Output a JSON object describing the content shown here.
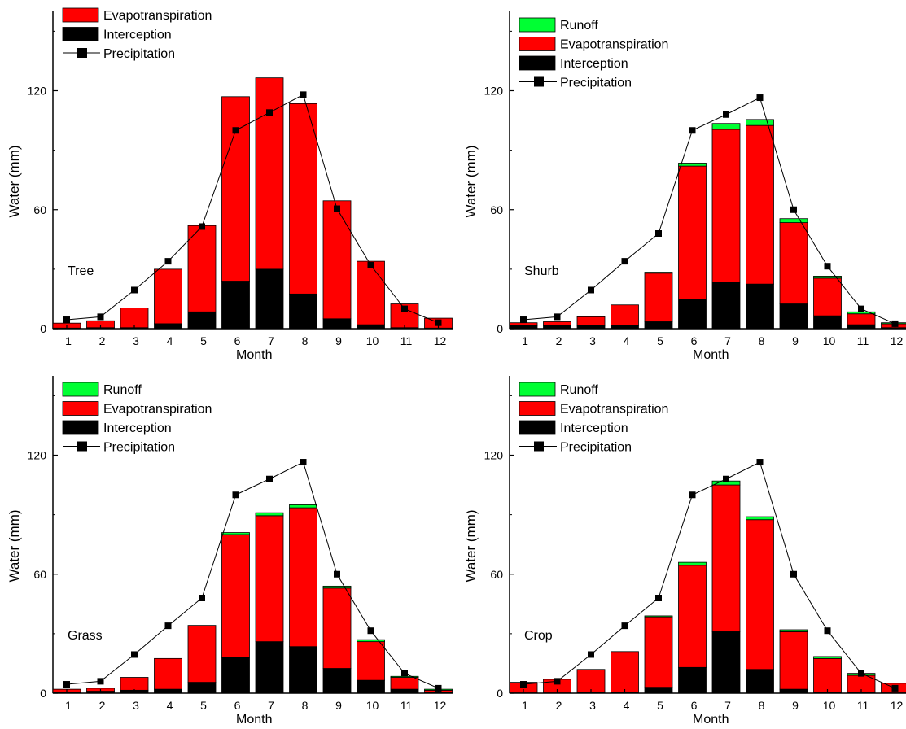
{
  "colors": {
    "runoff": "#00ff33",
    "evapotranspiration": "#ff0000",
    "interception": "#000000",
    "precipitation": "#000000"
  },
  "chart_data": [
    {
      "type": "bar",
      "stacked": true,
      "label": "Tree",
      "xlabel": "Month",
      "ylabel": "Water (mm)",
      "ylim": [
        0,
        160
      ],
      "yticks": [
        0,
        60,
        120
      ],
      "categories": [
        "1",
        "2",
        "3",
        "4",
        "5",
        "6",
        "7",
        "8",
        "9",
        "10",
        "11",
        "12"
      ],
      "legend": [
        "Evapotranspiration",
        "Interception",
        "Precipitation"
      ],
      "legend_position": "top-left",
      "series": [
        {
          "name": "Interception",
          "values": [
            0.3,
            0.5,
            0.5,
            2.5,
            8.5,
            24,
            30,
            17.5,
            5,
            2,
            0.5,
            0.3
          ]
        },
        {
          "name": "Evapotranspiration",
          "values": [
            2.5,
            3.5,
            10,
            27.5,
            43.5,
            93,
            96.5,
            96,
            59.5,
            32,
            12,
            5
          ]
        }
      ],
      "line": {
        "name": "Precipitation",
        "values": [
          4.5,
          6,
          19.5,
          34,
          51.5,
          100,
          109,
          118,
          60.5,
          32,
          10,
          3
        ]
      }
    },
    {
      "type": "bar",
      "stacked": true,
      "label": "Shurb",
      "xlabel": "Month",
      "ylabel": "Water (mm)",
      "ylim": [
        0,
        160
      ],
      "yticks": [
        0,
        60,
        120
      ],
      "categories": [
        "1",
        "2",
        "3",
        "4",
        "5",
        "6",
        "7",
        "8",
        "9",
        "10",
        "11",
        "12"
      ],
      "legend": [
        "Runoff",
        "Evapotranspiration",
        "Interception",
        "Precipitation"
      ],
      "legend_position": "top-left",
      "series": [
        {
          "name": "Interception",
          "values": [
            1.5,
            1.5,
            1.5,
            1.5,
            3.5,
            15,
            23.5,
            22.5,
            12.5,
            6.5,
            2,
            0.5
          ]
        },
        {
          "name": "Evapotranspiration",
          "values": [
            1.5,
            2,
            4.5,
            10.5,
            24.5,
            67,
            77,
            80,
            41,
            19,
            5.5,
            2
          ]
        },
        {
          "name": "Runoff",
          "values": [
            0,
            0,
            0,
            0,
            0.5,
            1.5,
            3,
            3,
            2,
            1,
            1,
            0.5
          ]
        }
      ],
      "line": {
        "name": "Precipitation",
        "values": [
          4.5,
          6,
          19.5,
          34,
          48,
          100,
          108,
          116.5,
          60,
          31.5,
          10,
          2.5
        ]
      }
    },
    {
      "type": "bar",
      "stacked": true,
      "label": "Grass",
      "xlabel": "Month",
      "ylabel": "Water (mm)",
      "ylim": [
        0,
        160
      ],
      "yticks": [
        0,
        60,
        120
      ],
      "categories": [
        "1",
        "2",
        "3",
        "4",
        "5",
        "6",
        "7",
        "8",
        "9",
        "10",
        "11",
        "12"
      ],
      "legend": [
        "Runoff",
        "Evapotranspiration",
        "Interception",
        "Precipitation"
      ],
      "legend_position": "top-left",
      "series": [
        {
          "name": "Interception",
          "values": [
            0.5,
            1,
            1.5,
            2,
            5.5,
            18,
            26,
            23.5,
            12.5,
            6.5,
            2,
            0.3
          ]
        },
        {
          "name": "Evapotranspiration",
          "values": [
            1.5,
            1.5,
            6.5,
            15.5,
            28.5,
            62,
            63.5,
            70,
            40.5,
            19.5,
            6,
            1.2
          ]
        },
        {
          "name": "Runoff",
          "values": [
            0,
            0,
            0,
            0,
            0.2,
            1,
            1.5,
            1.5,
            1,
            1,
            0.5,
            0.5
          ]
        }
      ],
      "line": {
        "name": "Precipitation",
        "values": [
          4.5,
          6,
          19.5,
          34,
          48,
          100,
          108,
          116.5,
          60,
          31.5,
          10,
          2.5
        ]
      }
    },
    {
      "type": "bar",
      "stacked": true,
      "label": "Crop",
      "xlabel": "Month",
      "ylabel": "Water (mm)",
      "ylim": [
        0,
        160
      ],
      "yticks": [
        0,
        60,
        120
      ],
      "categories": [
        "1",
        "2",
        "3",
        "4",
        "5",
        "6",
        "7",
        "8",
        "9",
        "10",
        "11",
        "12"
      ],
      "legend": [
        "Runoff",
        "Evapotranspiration",
        "Interception",
        "Precipitation"
      ],
      "legend_position": "top-left",
      "series": [
        {
          "name": "Interception",
          "values": [
            0.2,
            0.2,
            0.3,
            0.5,
            3,
            13,
            31,
            12,
            2,
            0.5,
            0.3,
            0.2
          ]
        },
        {
          "name": "Evapotranspiration",
          "values": [
            5.3,
            6.8,
            11.7,
            20.5,
            35.5,
            51.5,
            74,
            75.5,
            29,
            17,
            8.7,
            4.8
          ]
        },
        {
          "name": "Runoff",
          "values": [
            0,
            0,
            0,
            0,
            0.5,
            1.5,
            2,
            1.5,
            1,
            1,
            1,
            0
          ]
        }
      ],
      "line": {
        "name": "Precipitation",
        "values": [
          4.5,
          6,
          19.5,
          34,
          48,
          100,
          108,
          116.5,
          60,
          31.5,
          10,
          2.5
        ]
      }
    }
  ]
}
